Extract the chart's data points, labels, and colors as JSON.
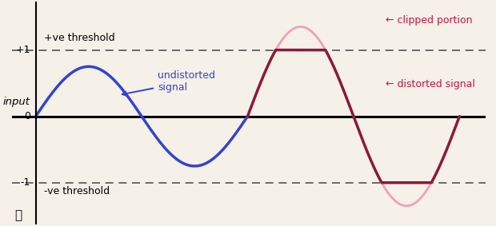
{
  "bg_color": "#f5f0e8",
  "zero_line_color": "#000000",
  "threshold_color": "#555555",
  "threshold_value": 1.0,
  "blue_amplitude": 0.75,
  "pink_amplitude": 1.35,
  "blue_color": "#3344cc",
  "pink_color": "#f0a0b8",
  "clipped_color": "#8b1a3a",
  "ylabel": "input",
  "label_plus_threshold": "+ve threshold",
  "label_minus_threshold": "-ve threshold",
  "label_zero": "0",
  "label_plus1": "+1",
  "label_minus1": "-1",
  "label_undistorted": "undistorted\nsignal",
  "label_clipped": "← clipped portion",
  "label_distorted": "← distorted signal",
  "annotation_color": "#cc1144",
  "blue_annotation_color": "#3344cc",
  "num_points": 1000
}
